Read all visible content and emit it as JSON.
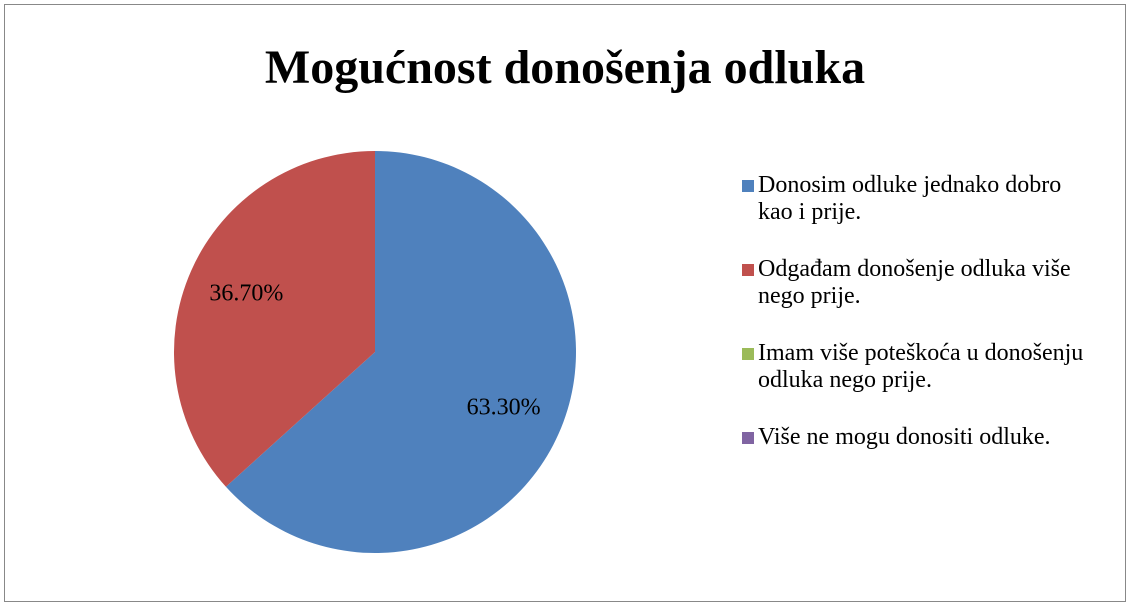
{
  "chart_data": {
    "type": "pie",
    "title": "Mogućnost donošenja odluka",
    "categories": [
      "Donosim odluke jednako dobro kao i prije.",
      "Odgađam donošenje odluka više nego prije.",
      "Imam više poteškoća u donošenju odluka nego prije.",
      "Više ne mogu donositi odluke."
    ],
    "values": [
      63.3,
      36.7,
      0,
      0
    ],
    "value_labels": [
      "63.30%",
      "36.70%",
      null,
      null
    ],
    "colors": [
      "#4f81bd",
      "#c0504d",
      "#9bbb59",
      "#8064a2"
    ],
    "legend": "right"
  }
}
